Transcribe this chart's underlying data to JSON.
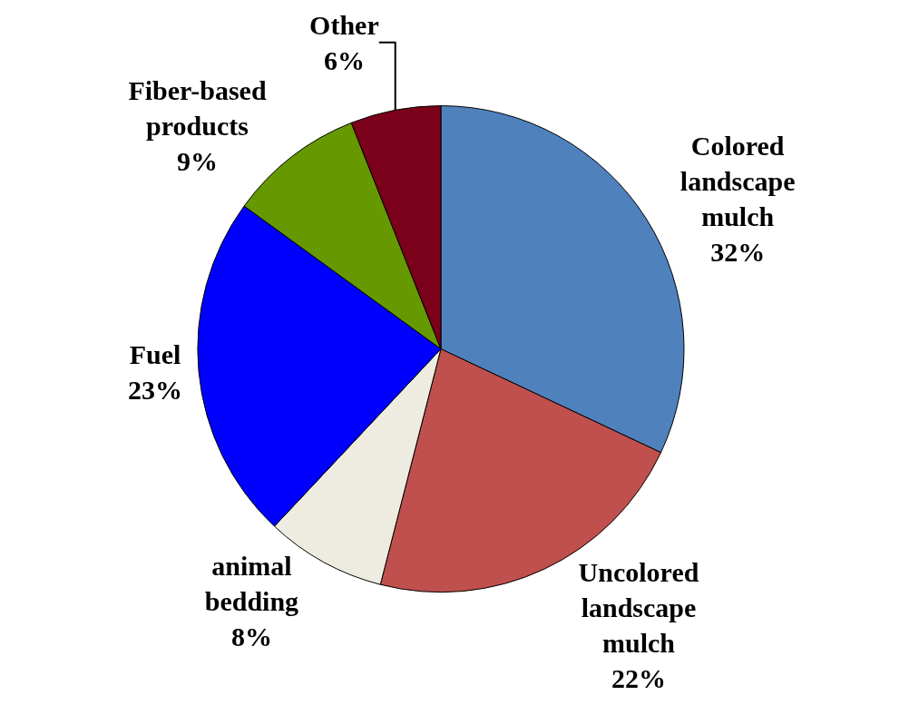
{
  "chart_data": {
    "type": "pie",
    "categories": [
      "Colored landscape mulch",
      "Uncolored landscape mulch",
      "animal bedding",
      "Fuel",
      "Fiber-based products",
      "Other"
    ],
    "values": [
      32,
      22,
      8,
      23,
      9,
      6
    ],
    "value_labels": [
      "32%",
      "22%",
      "8%",
      "23%",
      "9%",
      "6%"
    ],
    "colors": [
      "#4f81bd",
      "#c0504d",
      "#eeece1",
      "#0000ff",
      "#669900",
      "#7b0019"
    ],
    "legend": false
  }
}
